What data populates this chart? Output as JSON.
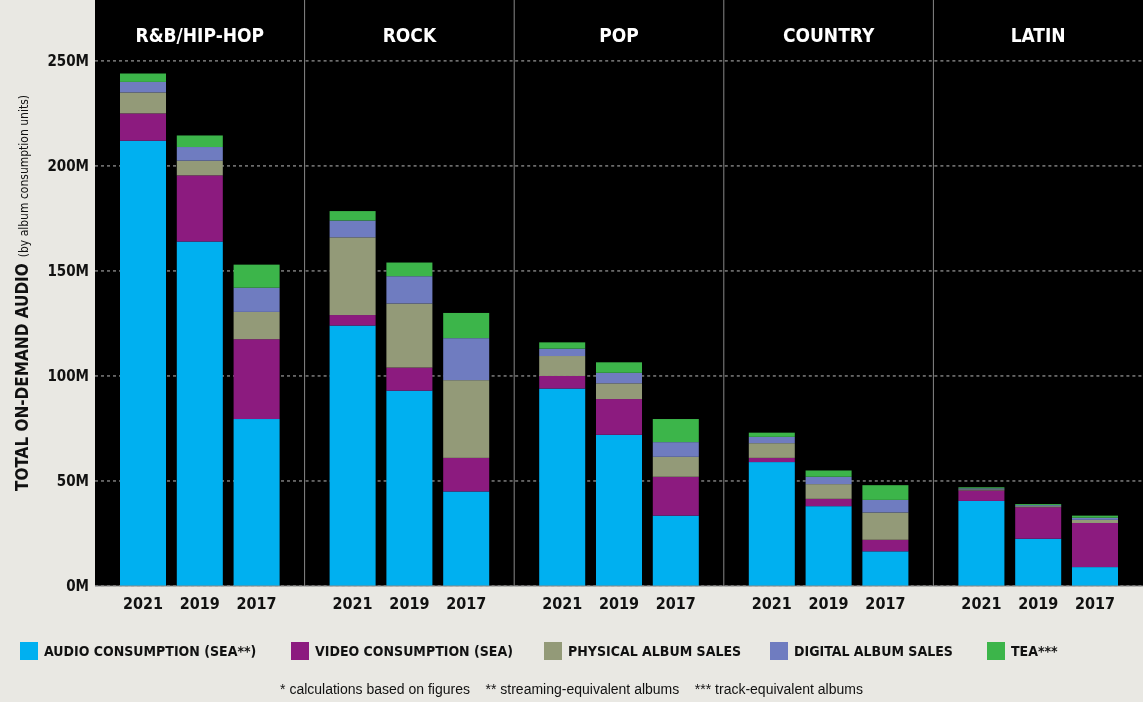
{
  "chart_data": [
    {
      "type": "bar",
      "stacked": true,
      "title": "R&B/HIP-HOP",
      "ylabel": "TOTAL ON-DEMAND AUDIO",
      "subtitle": "(by album consumption units)",
      "categories": [
        "2021",
        "2019",
        "2017"
      ],
      "ylim": [
        0,
        279
      ],
      "yticks": [
        {
          "value": 0,
          "label": "0M"
        },
        {
          "value": 50,
          "label": "50M"
        },
        {
          "value": 100,
          "label": "100M"
        },
        {
          "value": 150,
          "label": "150M"
        },
        {
          "value": 200,
          "label": "200M"
        },
        {
          "value": 250,
          "label": "250M"
        }
      ],
      "grid": "y",
      "legend": "bottom",
      "annotations": [
        "* calculations based on figures    ** streaming-equivalent albums    *** track-equivalent albums"
      ],
      "series": [
        {
          "name": "AUDIO CONSUMPTION (SEA**)",
          "color": "#00b0f0",
          "values": [
            212,
            164,
            79.5
          ]
        },
        {
          "name": "VIDEO CONSUMPTION (SEA)",
          "color": "#8c1b7f",
          "values": [
            13,
            31.5,
            38
          ]
        },
        {
          "name": "PHYSICAL ALBUM SALES",
          "color": "#939a78",
          "values": [
            10,
            7,
            13
          ]
        },
        {
          "name": "DIGITAL ALBUM SALES",
          "color": "#6f7cc0",
          "values": [
            5,
            6.5,
            11.5
          ]
        },
        {
          "name": "TEA***",
          "color": "#3cb54a",
          "values": [
            4,
            5.5,
            11
          ]
        }
      ]
    },
    {
      "type": "bar",
      "stacked": true,
      "title": "ROCK",
      "categories": [
        "2021",
        "2019",
        "2017"
      ],
      "ylim": [
        0,
        279
      ],
      "yticks": [
        {
          "value": 0,
          "label": null
        },
        {
          "value": 50,
          "label": null
        },
        {
          "value": 100,
          "label": null
        },
        {
          "value": 150,
          "label": null
        },
        {
          "value": 200,
          "label": null
        },
        {
          "value": 250,
          "label": null
        }
      ],
      "grid": "y",
      "tick_labels": "x",
      "series": [
        {
          "color": "#00b0f0",
          "values": [
            124,
            93,
            45
          ]
        },
        {
          "color": "#8c1b7f",
          "values": [
            5,
            11,
            16
          ]
        },
        {
          "color": "#939a78",
          "values": [
            37,
            30.5,
            37
          ]
        },
        {
          "color": "#6f7cc0",
          "values": [
            8,
            13,
            20
          ]
        },
        {
          "color": "#3cb54a",
          "values": [
            4.5,
            6.5,
            12
          ]
        }
      ]
    },
    {
      "type": "bar",
      "stacked": true,
      "title": "POP",
      "categories": [
        "2021",
        "2019",
        "2017"
      ],
      "ylim": [
        0,
        279
      ],
      "yticks": [
        {
          "value": 0,
          "label": null
        },
        {
          "value": 50,
          "label": null
        },
        {
          "value": 100,
          "label": null
        },
        {
          "value": 150,
          "label": null
        },
        {
          "value": 200,
          "label": null
        },
        {
          "value": 250,
          "label": null
        }
      ],
      "grid": "y",
      "tick_labels": "x",
      "series": [
        {
          "color": "#00b0f0",
          "values": [
            94,
            72,
            33.5
          ]
        },
        {
          "color": "#8c1b7f",
          "values": [
            6,
            17,
            18.5
          ]
        },
        {
          "color": "#939a78",
          "values": [
            9.5,
            7.5,
            9.5
          ]
        },
        {
          "color": "#6f7cc0",
          "values": [
            3.5,
            5,
            7
          ]
        },
        {
          "color": "#3cb54a",
          "values": [
            3,
            5,
            11
          ]
        }
      ]
    },
    {
      "type": "bar",
      "stacked": true,
      "title": "COUNTRY",
      "categories": [
        "2021",
        "2019",
        "2017"
      ],
      "ylim": [
        0,
        279
      ],
      "yticks": [
        {
          "value": 0,
          "label": null
        },
        {
          "value": 50,
          "label": null
        },
        {
          "value": 100,
          "label": null
        },
        {
          "value": 150,
          "label": null
        },
        {
          "value": 200,
          "label": null
        },
        {
          "value": 250,
          "label": null
        }
      ],
      "grid": "y",
      "tick_labels": "x",
      "series": [
        {
          "color": "#00b0f0",
          "values": [
            59,
            38,
            16.5
          ]
        },
        {
          "color": "#8c1b7f",
          "values": [
            2,
            3.5,
            5.5
          ]
        },
        {
          "color": "#939a78",
          "values": [
            7,
            7,
            13
          ]
        },
        {
          "color": "#6f7cc0",
          "values": [
            3,
            3.5,
            6
          ]
        },
        {
          "color": "#3cb54a",
          "values": [
            2,
            3,
            7
          ]
        }
      ]
    },
    {
      "type": "bar",
      "stacked": true,
      "title": "LATIN",
      "categories": [
        "2021",
        "2019",
        "2017"
      ],
      "ylim": [
        0,
        279
      ],
      "yticks": [
        {
          "value": 0,
          "label": null
        },
        {
          "value": 50,
          "label": null
        },
        {
          "value": 100,
          "label": null
        },
        {
          "value": 150,
          "label": null
        },
        {
          "value": 200,
          "label": null
        },
        {
          "value": 250,
          "label": null
        }
      ],
      "grid": "y",
      "tick_labels": "x",
      "series": [
        {
          "color": "#00b0f0",
          "values": [
            40.5,
            22.5,
            9
          ]
        },
        {
          "color": "#8c1b7f",
          "values": [
            5,
            15,
            21
          ]
        },
        {
          "color": "#939a78",
          "values": [
            0.5,
            0.5,
            1.5
          ]
        },
        {
          "color": "#6f7cc0",
          "values": [
            0.5,
            0.5,
            1
          ]
        },
        {
          "color": "#3cb54a",
          "values": [
            0.5,
            0.5,
            1
          ]
        }
      ]
    }
  ]
}
